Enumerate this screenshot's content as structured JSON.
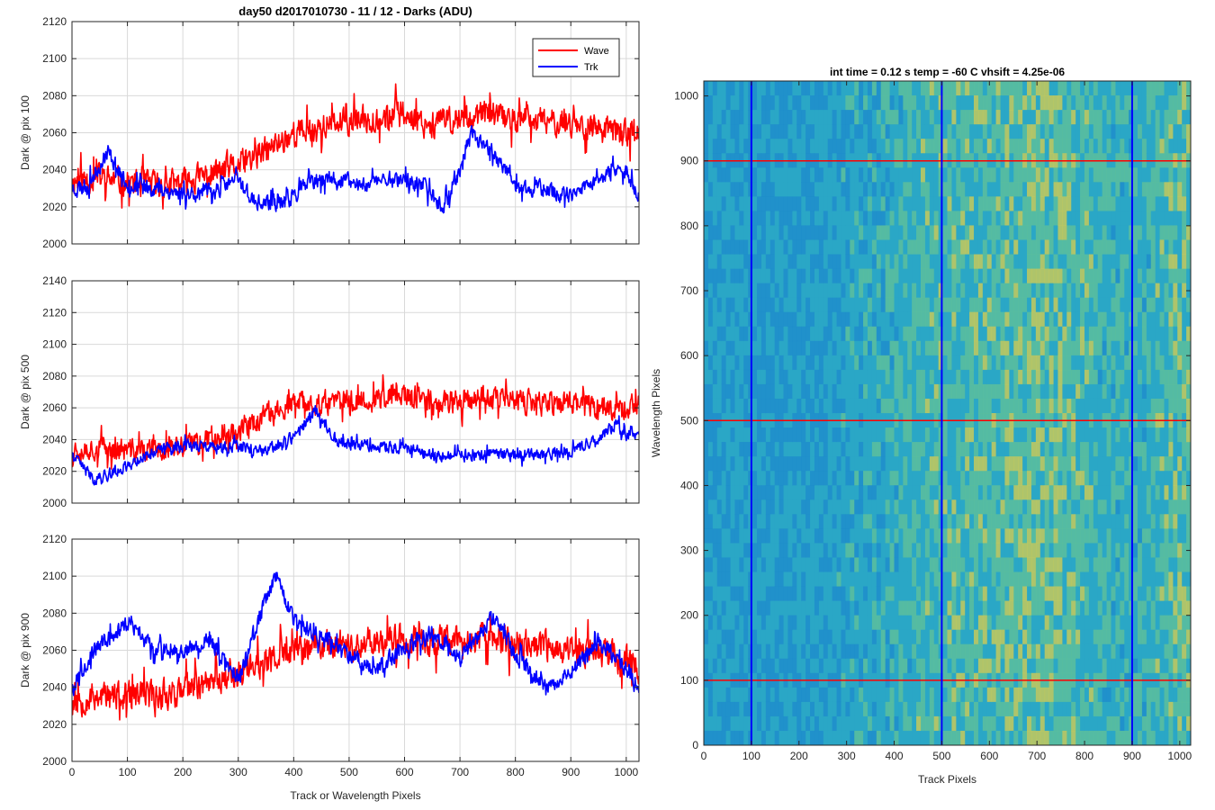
{
  "figure": {
    "title": "day50 d2017010730 - 11 / 12 - Darks (ADU)",
    "image_title": "int time = 0.12 s    temp = -60 C    vhsift = 4.25e-06"
  },
  "colors": {
    "wave": "#ff0000",
    "trk": "#0000ff",
    "grid": "#d9d9d9",
    "axis": "#262626"
  },
  "chart_data": [
    {
      "type": "line",
      "ylabel": "Dark @ pix 100",
      "xlim": [
        0,
        1023
      ],
      "ylim": [
        2000,
        2120
      ],
      "xticks": [
        0,
        100,
        200,
        300,
        400,
        500,
        600,
        700,
        800,
        900,
        1000
      ],
      "yticks": [
        2000,
        2020,
        2040,
        2060,
        2080,
        2100,
        2120
      ],
      "grid": true,
      "legend": {
        "placement": "top-right",
        "entries": [
          "Wave",
          "Trk"
        ]
      },
      "series": [
        {
          "name": "Wave",
          "color": "#ff0000",
          "noise": 10,
          "seed": 11,
          "x": [
            0,
            50,
            100,
            150,
            200,
            250,
            300,
            350,
            400,
            450,
            500,
            550,
            600,
            650,
            700,
            750,
            800,
            850,
            900,
            950,
            1000,
            1023
          ],
          "y": [
            2034,
            2036,
            2033,
            2032,
            2033,
            2038,
            2042,
            2050,
            2060,
            2063,
            2066,
            2068,
            2070,
            2065,
            2068,
            2070,
            2067,
            2066,
            2066,
            2062,
            2060,
            2062
          ]
        },
        {
          "name": "Trk",
          "color": "#0000ff",
          "noise": 6,
          "seed": 23,
          "x": [
            0,
            30,
            65,
            100,
            150,
            200,
            250,
            300,
            330,
            380,
            430,
            480,
            520,
            560,
            600,
            640,
            670,
            700,
            720,
            760,
            800,
            850,
            900,
            950,
            1000,
            1023
          ],
          "y": [
            2030,
            2032,
            2050,
            2032,
            2030,
            2027,
            2028,
            2035,
            2022,
            2022,
            2033,
            2035,
            2032,
            2035,
            2035,
            2030,
            2020,
            2040,
            2060,
            2050,
            2030,
            2030,
            2025,
            2035,
            2040,
            2025
          ]
        }
      ]
    },
    {
      "type": "line",
      "ylabel": "Dark @ pix 500",
      "xlim": [
        0,
        1023
      ],
      "ylim": [
        2000,
        2140
      ],
      "xticks": [
        0,
        100,
        200,
        300,
        400,
        500,
        600,
        700,
        800,
        900,
        1000
      ],
      "yticks": [
        2000,
        2020,
        2040,
        2060,
        2080,
        2100,
        2120,
        2140
      ],
      "grid": true,
      "series": [
        {
          "name": "Wave",
          "color": "#ff0000",
          "noise": 10,
          "seed": 37,
          "x": [
            0,
            50,
            100,
            150,
            200,
            250,
            300,
            350,
            400,
            450,
            500,
            550,
            600,
            650,
            700,
            750,
            800,
            850,
            900,
            950,
            1000,
            1023
          ],
          "y": [
            2034,
            2035,
            2033,
            2033,
            2035,
            2042,
            2046,
            2055,
            2062,
            2063,
            2064,
            2065,
            2068,
            2063,
            2065,
            2067,
            2064,
            2062,
            2064,
            2061,
            2060,
            2062
          ]
        },
        {
          "name": "Trk",
          "color": "#0000ff",
          "noise": 5,
          "seed": 41,
          "x": [
            0,
            40,
            80,
            150,
            200,
            250,
            300,
            350,
            400,
            440,
            480,
            550,
            600,
            650,
            700,
            750,
            800,
            850,
            900,
            950,
            980,
            1000,
            1023
          ],
          "y": [
            2030,
            2015,
            2020,
            2033,
            2037,
            2035,
            2035,
            2032,
            2042,
            2058,
            2038,
            2035,
            2035,
            2030,
            2030,
            2030,
            2030,
            2030,
            2033,
            2040,
            2050,
            2043,
            2045
          ]
        }
      ]
    },
    {
      "type": "line",
      "ylabel": "Dark @ pix 900",
      "xlabel": "Track or Wavelength Pixels",
      "xlim": [
        0,
        1023
      ],
      "ylim": [
        2000,
        2120
      ],
      "xticks": [
        0,
        100,
        200,
        300,
        400,
        500,
        600,
        700,
        800,
        900,
        1000
      ],
      "yticks": [
        2000,
        2020,
        2040,
        2060,
        2080,
        2100,
        2120
      ],
      "grid": true,
      "series": [
        {
          "name": "Wave",
          "color": "#ff0000",
          "noise": 11,
          "seed": 53,
          "x": [
            0,
            50,
            100,
            150,
            200,
            250,
            300,
            350,
            400,
            450,
            500,
            550,
            600,
            650,
            700,
            750,
            800,
            850,
            900,
            950,
            1000,
            1023
          ],
          "y": [
            2032,
            2036,
            2034,
            2036,
            2038,
            2044,
            2048,
            2054,
            2060,
            2063,
            2064,
            2065,
            2066,
            2064,
            2065,
            2066,
            2064,
            2062,
            2060,
            2058,
            2055,
            2052
          ]
        },
        {
          "name": "Trk",
          "color": "#0000ff",
          "noise": 6,
          "seed": 67,
          "x": [
            0,
            40,
            80,
            100,
            150,
            200,
            250,
            300,
            340,
            370,
            400,
            450,
            500,
            550,
            600,
            650,
            700,
            760,
            800,
            850,
            900,
            950,
            1000,
            1023
          ],
          "y": [
            2040,
            2060,
            2070,
            2075,
            2060,
            2060,
            2065,
            2045,
            2080,
            2100,
            2075,
            2068,
            2058,
            2050,
            2062,
            2070,
            2055,
            2078,
            2058,
            2040,
            2048,
            2065,
            2050,
            2040
          ]
        }
      ]
    },
    {
      "type": "heatmap",
      "title": "int time = 0.12 s    temp = -60 C    vhsift = 4.25e-06",
      "xlabel": "Track Pixels",
      "ylabel": "Wavelength Pixels",
      "xlim": [
        0,
        1023
      ],
      "ylim": [
        0,
        1023
      ],
      "xticks": [
        0,
        100,
        200,
        300,
        400,
        500,
        600,
        700,
        800,
        900,
        1000
      ],
      "yticks": [
        0,
        100,
        200,
        300,
        400,
        500,
        600,
        700,
        800,
        900,
        1000
      ],
      "colormap": [
        "#1E8DCB",
        "#2AA7C6",
        "#5CBE9C",
        "#C5C95A"
      ],
      "vertical_markers": [
        100,
        500,
        900
      ],
      "horizontal_markers": [
        100,
        500,
        900
      ],
      "vertical_marker_color": "#0000ff",
      "horizontal_marker_color": "#ff0000"
    }
  ]
}
